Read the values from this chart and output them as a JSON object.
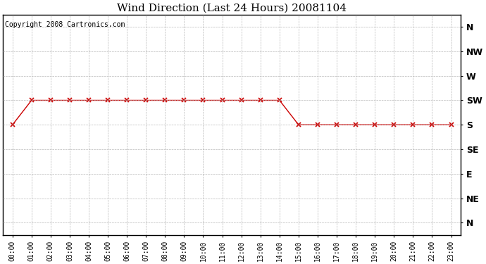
{
  "title": "Wind Direction (Last 24 Hours) 20081104",
  "copyright_text": "Copyright 2008 Cartronics.com",
  "line_color": "#cc0000",
  "marker": "x",
  "marker_color": "#cc0000",
  "background_color": "#ffffff",
  "grid_color": "#b0b0b0",
  "x_labels": [
    "00:00",
    "01:00",
    "02:00",
    "03:00",
    "04:00",
    "05:00",
    "06:00",
    "07:00",
    "08:00",
    "09:00",
    "10:00",
    "11:00",
    "12:00",
    "13:00",
    "14:00",
    "15:00",
    "16:00",
    "17:00",
    "18:00",
    "19:00",
    "20:00",
    "21:00",
    "22:00",
    "23:00"
  ],
  "y_labels": [
    "N",
    "NE",
    "E",
    "SE",
    "S",
    "SW",
    "W",
    "NW",
    "N"
  ],
  "y_values": [
    0,
    1,
    2,
    3,
    4,
    5,
    6,
    7,
    8
  ],
  "wind_data": [
    4,
    5,
    5,
    5,
    5,
    5,
    5,
    5,
    5,
    5,
    5,
    5,
    5,
    5,
    5,
    4,
    4,
    4,
    4,
    4,
    4,
    4,
    4,
    4
  ],
  "title_fontsize": 11,
  "axis_fontsize": 7,
  "copyright_fontsize": 7,
  "ylabel_fontsize": 9
}
